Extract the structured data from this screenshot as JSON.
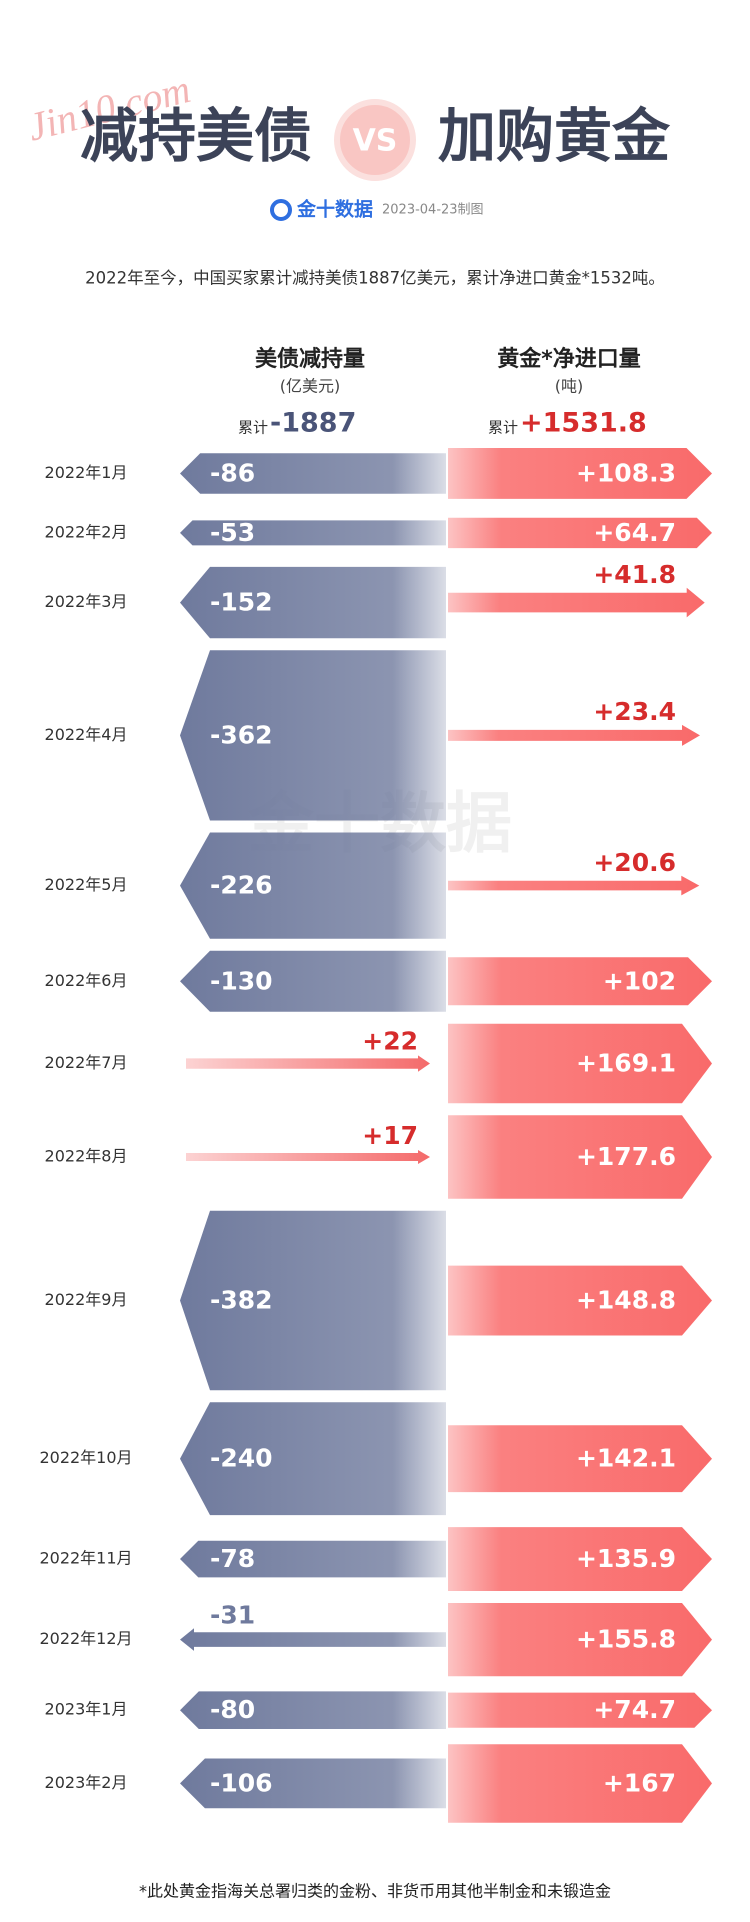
{
  "header": {
    "logo_script": "Jin10.com",
    "title_left": "减持美债",
    "vs": "VS",
    "title_right": "加购黄金",
    "brand": "金十数据",
    "date": "2023-04-23制图",
    "summary": "2022年至今，中国买家累计减持美债1887亿美元，累计净进口黄金*1532吨。",
    "total_prefix": "累计",
    "watermark": "金十数据"
  },
  "chart_data": {
    "type": "diverging-arrow",
    "categories": [
      "2022年1月",
      "2022年2月",
      "2022年3月",
      "2022年4月",
      "2022年5月",
      "2022年6月",
      "2022年7月",
      "2022年8月",
      "2022年9月",
      "2022年10月",
      "2022年11月",
      "2022年12月",
      "2023年1月",
      "2023年2月"
    ],
    "series": [
      {
        "name": "美债减持量",
        "unit": "(亿美元)",
        "color": "#6f7a9d",
        "positive_color": "#f46a6a",
        "total": -1887,
        "values": [
          -86,
          -53,
          -152,
          -362,
          -226,
          -130,
          22,
          17,
          -382,
          -240,
          -78,
          -31,
          -80,
          -106
        ],
        "value_labels": [
          "-86",
          "-53",
          "-152",
          "-362",
          "-226",
          "-130",
          "+22",
          "+17",
          "-382",
          "-240",
          "-78",
          "-31",
          "-80",
          "-106"
        ]
      },
      {
        "name": "黄金*净进口量",
        "unit": "(吨)",
        "color": "#f96a6a",
        "total": 1531.8,
        "total_label": "+1531.8",
        "values": [
          108.3,
          64.7,
          41.8,
          23.4,
          20.6,
          102,
          169.1,
          177.6,
          148.8,
          142.1,
          135.9,
          155.8,
          74.7,
          167
        ],
        "value_labels": [
          "+108.3",
          "+64.7",
          "+41.8",
          "+23.4",
          "+20.6",
          "+102",
          "+169.1",
          "+177.6",
          "+148.8",
          "+142.1",
          "+135.9",
          "+155.8",
          "+74.7",
          "+167"
        ]
      }
    ],
    "footnote": "*此处黄金指海关总署归类的金粉、非货币用其他半制金和未锻造金"
  }
}
